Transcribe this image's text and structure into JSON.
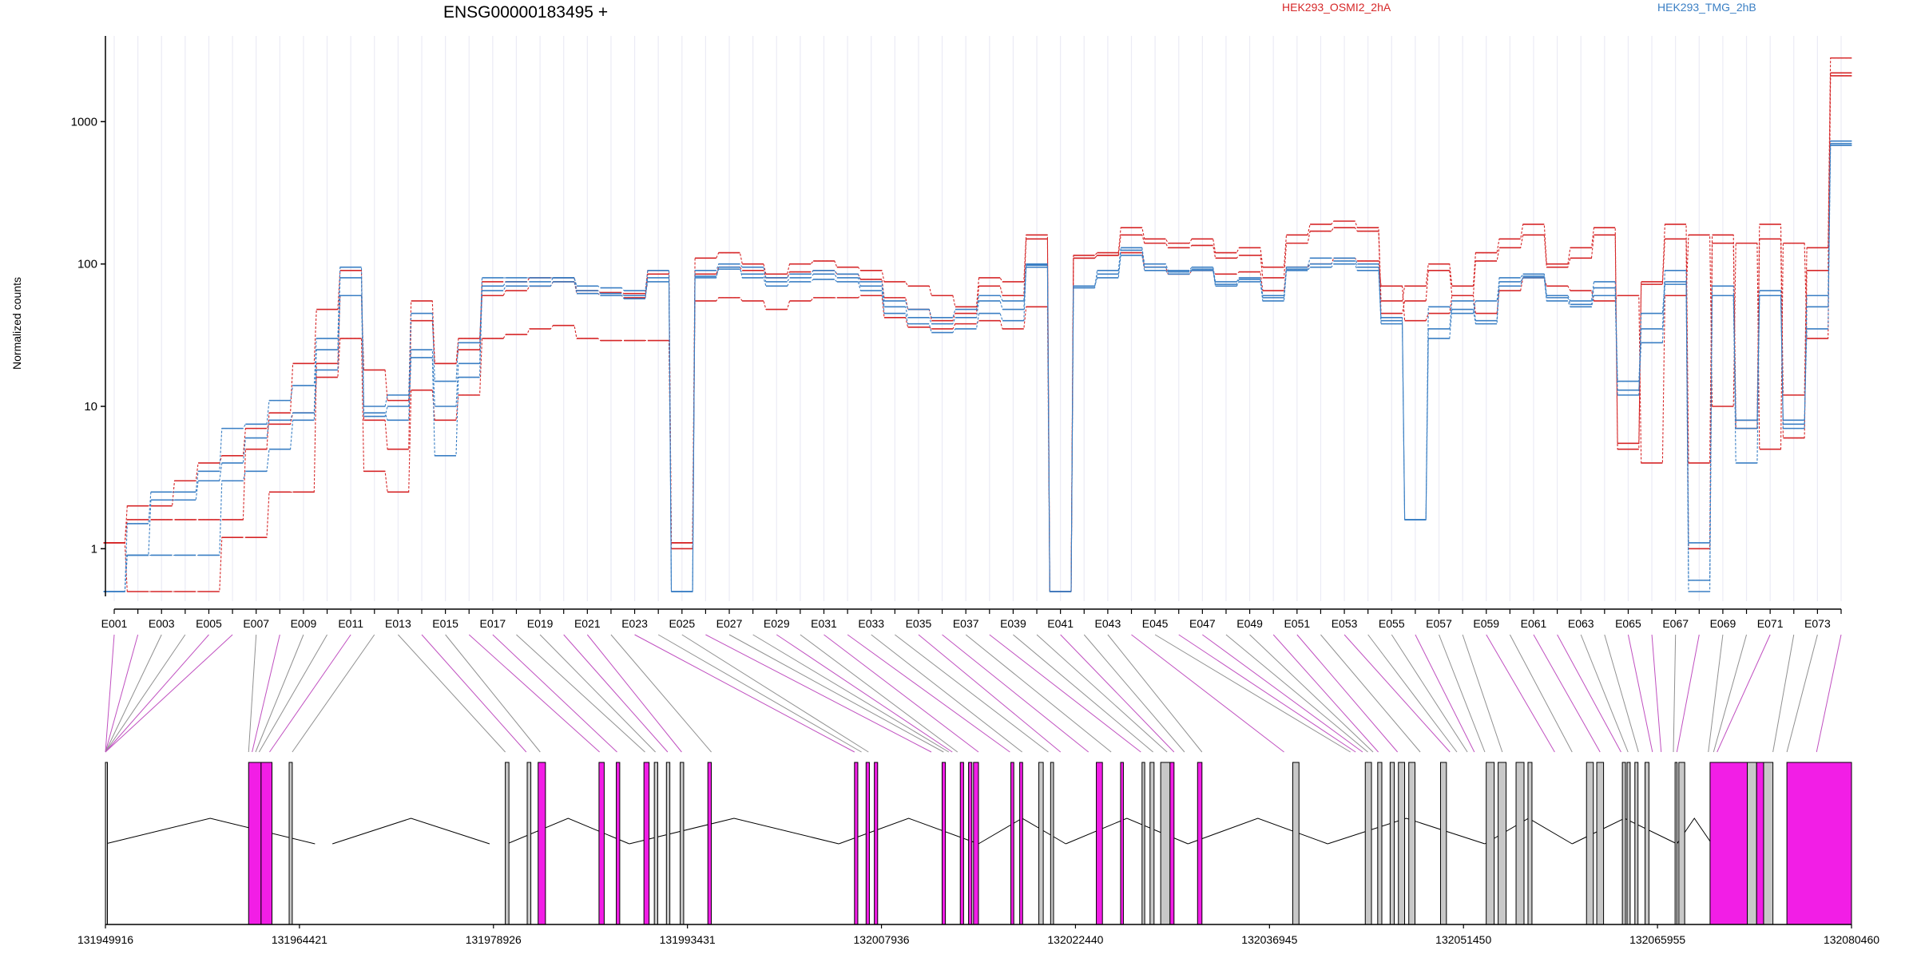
{
  "chart_data": {
    "type": "line",
    "title": "ENSG00000183495 +",
    "ylabel": "Normalized counts",
    "yscale": "log",
    "ylim": [
      0.5,
      4000
    ],
    "yticks": [
      1,
      10,
      100,
      1000
    ],
    "ytick_labels": [
      "1",
      "10",
      "100",
      "1000"
    ],
    "grid": "vertical, per exon",
    "legend": [
      {
        "name": "HEK293_OSMI2_2hA",
        "color": "#d62728",
        "position": "top-center"
      },
      {
        "name": "HEK293_TMG_2hB",
        "color": "#3a7fc4",
        "position": "top-right"
      }
    ],
    "colors": {
      "red": "#d62728",
      "blue": "#3a7fc4",
      "magenta": "#f21ee6",
      "gray": "#c8c8c8"
    },
    "exons": [
      "E001",
      "E002",
      "E003",
      "E004",
      "E005",
      "E006",
      "E007",
      "E008",
      "E009",
      "E010",
      "E011",
      "E012",
      "E013",
      "E014",
      "E015",
      "E016",
      "E017",
      "E018",
      "E019",
      "E020",
      "E021",
      "E022",
      "E023",
      "E024",
      "E025",
      "E026",
      "E027",
      "E028",
      "E029",
      "E030",
      "E031",
      "E032",
      "E033",
      "E034",
      "E035",
      "E036",
      "E037",
      "E038",
      "E039",
      "E040",
      "E041",
      "E042",
      "E043",
      "E044",
      "E045",
      "E046",
      "E047",
      "E048",
      "E049",
      "E050",
      "E051",
      "E052",
      "E053",
      "E054",
      "E055",
      "E056",
      "E057",
      "E058",
      "E059",
      "E060",
      "E061",
      "E062",
      "E063",
      "E064",
      "E065",
      "E066",
      "E067",
      "E068",
      "E069",
      "E070",
      "E071",
      "E072",
      "E073",
      "E074"
    ],
    "exon_tick_labels": [
      "E001",
      "E003",
      "E005",
      "E007",
      "E009",
      "E011",
      "E013",
      "E015",
      "E017",
      "E019",
      "E021",
      "E023",
      "E025",
      "E027",
      "E029",
      "E031",
      "E033",
      "E035",
      "E037",
      "E039",
      "E041",
      "E043",
      "E045",
      "E047",
      "E049",
      "E051",
      "E053",
      "E055",
      "E057",
      "E059",
      "E061",
      "E063",
      "E065",
      "E067",
      "E069",
      "E071",
      "E073"
    ],
    "series": [
      {
        "name": "HEK293_OSMI2_2hA rep1",
        "group": "red",
        "values": [
          1.1,
          2,
          2,
          3,
          4,
          4.5,
          7,
          7.5,
          9,
          16,
          30,
          3.5,
          2.5,
          13,
          8,
          12,
          30,
          32,
          35,
          37,
          30,
          29,
          29,
          29,
          1.1,
          55,
          58,
          55,
          48,
          55,
          58,
          58,
          60,
          42,
          36,
          35,
          38,
          40,
          35,
          50,
          0.5,
          110,
          115,
          120,
          95,
          85,
          90,
          85,
          88,
          65,
          95,
          100,
          110,
          105,
          70,
          40,
          45,
          60,
          45,
          65,
          80,
          70,
          65,
          55,
          60,
          4,
          60,
          160,
          10,
          140,
          5,
          140,
          30,
          2200
        ]
      },
      {
        "name": "HEK293_OSMI2_2hA rep2",
        "group": "red",
        "values": [
          1.1,
          0.5,
          0.5,
          0.5,
          0.5,
          1.2,
          1.2,
          2.5,
          2.5,
          20,
          60,
          18,
          11,
          55,
          20,
          30,
          60,
          65,
          70,
          75,
          62,
          60,
          58,
          85,
          1.1,
          110,
          120,
          100,
          85,
          100,
          105,
          95,
          90,
          75,
          70,
          60,
          50,
          80,
          75,
          160,
          0.5,
          115,
          120,
          180,
          150,
          140,
          150,
          120,
          130,
          95,
          160,
          190,
          200,
          180,
          55,
          70,
          100,
          70,
          120,
          150,
          190,
          100,
          130,
          180,
          5,
          75,
          190,
          4,
          160,
          8,
          190,
          12,
          130,
          2800
        ]
      },
      {
        "name": "HEK293_OSMI2_2hA rep3",
        "group": "red",
        "values": [
          1.1,
          1.6,
          1.6,
          1.6,
          1.6,
          1.6,
          5,
          9,
          20,
          48,
          90,
          8,
          5,
          40,
          20,
          25,
          75,
          75,
          80,
          80,
          65,
          63,
          62,
          90,
          1,
          85,
          95,
          90,
          80,
          88,
          90,
          85,
          78,
          58,
          48,
          40,
          45,
          70,
          60,
          150,
          0.5,
          110,
          115,
          160,
          140,
          130,
          135,
          110,
          115,
          80,
          140,
          170,
          180,
          170,
          45,
          55,
          90,
          60,
          105,
          130,
          160,
          95,
          110,
          160,
          5.5,
          72,
          150,
          1,
          140,
          7,
          150,
          6,
          90,
          2100
        ]
      },
      {
        "name": "HEK293_TMG_2hB rep1",
        "group": "blue",
        "values": [
          0.5,
          0.9,
          0.9,
          0.9,
          0.9,
          3,
          3.5,
          5,
          8,
          18,
          60,
          9,
          8,
          22,
          4.5,
          16,
          65,
          70,
          70,
          75,
          65,
          62,
          60,
          75,
          0.5,
          80,
          95,
          80,
          70,
          75,
          78,
          75,
          65,
          45,
          38,
          33,
          35,
          45,
          40,
          95,
          0.5,
          70,
          80,
          115,
          90,
          85,
          90,
          70,
          75,
          55,
          90,
          95,
          100,
          90,
          40,
          1.6,
          50,
          45,
          55,
          75,
          80,
          55,
          50,
          60,
          12,
          45,
          75,
          1.1,
          60,
          4,
          60,
          8,
          35,
          700
        ]
      },
      {
        "name": "HEK293_TMG_2hB rep2",
        "group": "blue",
        "values": [
          0.5,
          1.5,
          2.5,
          2.5,
          3.5,
          7,
          7.5,
          11,
          14,
          30,
          95,
          10,
          12,
          45,
          15,
          28,
          80,
          80,
          80,
          80,
          70,
          68,
          65,
          90,
          0.5,
          90,
          100,
          95,
          80,
          85,
          90,
          85,
          75,
          55,
          48,
          42,
          48,
          60,
          55,
          100,
          0.5,
          68,
          90,
          130,
          100,
          90,
          95,
          75,
          80,
          60,
          95,
          110,
          110,
          100,
          42,
          1.6,
          35,
          55,
          40,
          80,
          85,
          60,
          55,
          75,
          15,
          35,
          90,
          0.5,
          70,
          8,
          65,
          7,
          60,
          730
        ]
      },
      {
        "name": "HEK293_TMG_2hB rep3",
        "group": "blue",
        "values": [
          0.5,
          0.9,
          2.2,
          2.2,
          3,
          4,
          6,
          8,
          9,
          25,
          80,
          8.5,
          10,
          25,
          10,
          20,
          70,
          75,
          75,
          80,
          62,
          60,
          57,
          80,
          0.5,
          82,
          92,
          85,
          75,
          80,
          85,
          80,
          70,
          50,
          42,
          38,
          42,
          55,
          48,
          98,
          0.5,
          70,
          85,
          125,
          95,
          88,
          92,
          72,
          78,
          58,
          92,
          100,
          105,
          95,
          38,
          1.6,
          30,
          48,
          38,
          70,
          82,
          58,
          52,
          68,
          13,
          28,
          72,
          0.6,
          60,
          7,
          60,
          7.5,
          50,
          680
        ]
      }
    ],
    "gene_axis_ticks": [
      "131949916",
      "131964421",
      "131978926",
      "131993431",
      "132007936",
      "132022440",
      "132036945",
      "132051450",
      "132065955",
      "132080460"
    ]
  }
}
